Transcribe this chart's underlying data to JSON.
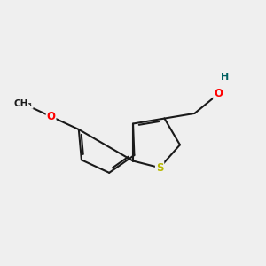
{
  "bg_color": "#efefef",
  "bond_color": "#1a1a1a",
  "S_color": "#b8b800",
  "O_color": "#ff0000",
  "H_color": "#006060",
  "line_width": 1.5,
  "dbo": 0.008,
  "atoms": {
    "C3a": [
      0.5,
      0.535
    ],
    "C7a": [
      0.5,
      0.395
    ],
    "BL": 0.115
  }
}
